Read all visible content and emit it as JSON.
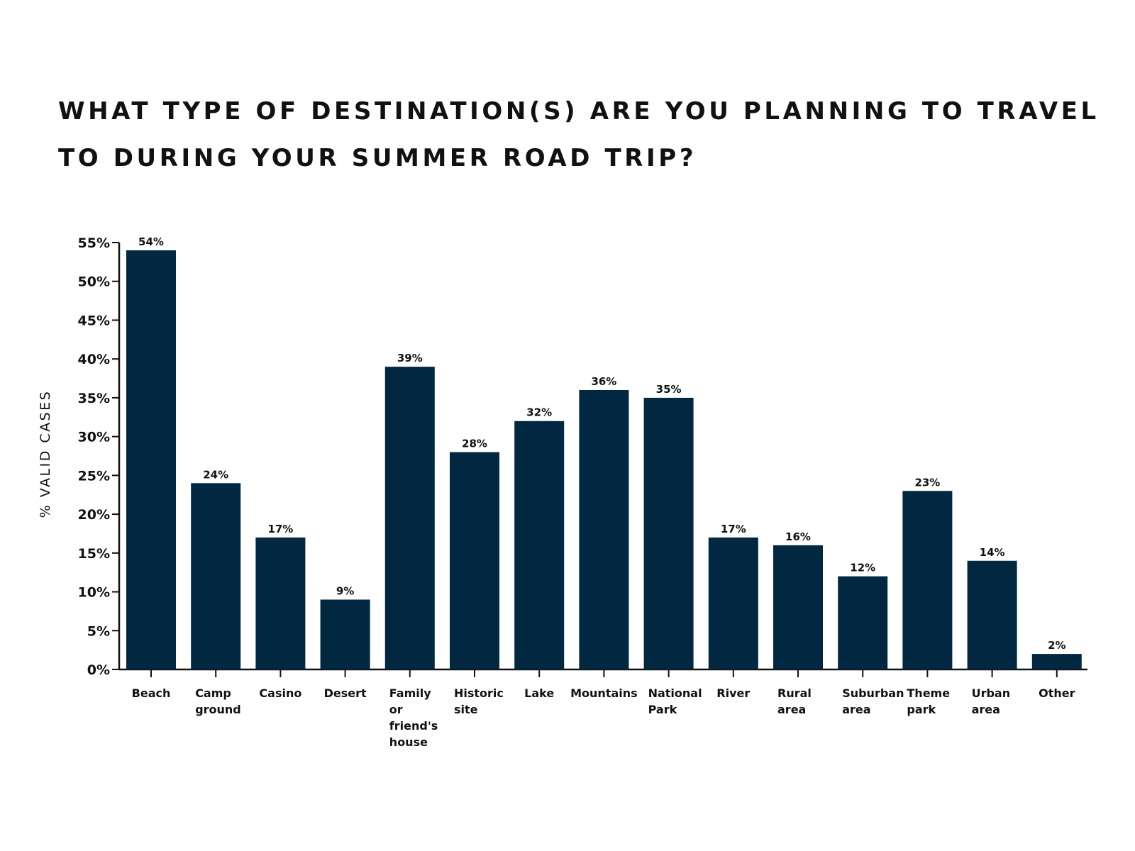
{
  "chart_data": {
    "type": "bar",
    "title": "WHAT TYPE OF DESTINATION(S) ARE YOU PLANNING TO TRAVEL TO DURING YOUR SUMMER ROAD TRIP?",
    "xlabel": "",
    "ylabel": "% VALID CASES",
    "ylim": [
      0,
      55
    ],
    "yticks": [
      "0%",
      "5%",
      "10%",
      "15%",
      "20%",
      "25%",
      "30%",
      "35%",
      "40%",
      "45%",
      "50%",
      "55%"
    ],
    "categories": [
      [
        "Beach"
      ],
      [
        "Camp",
        "ground"
      ],
      [
        "Casino"
      ],
      [
        "Desert"
      ],
      [
        "Family",
        "or",
        "friend's",
        "house"
      ],
      [
        "Historic",
        "site"
      ],
      [
        "Lake"
      ],
      [
        "Mountains"
      ],
      [
        "National",
        "Park"
      ],
      [
        "River"
      ],
      [
        "Rural",
        "area"
      ],
      [
        "Suburban",
        "area"
      ],
      [
        "Theme",
        "park"
      ],
      [
        "Urban",
        "area"
      ],
      [
        "Other"
      ]
    ],
    "values": [
      54,
      24,
      17,
      9,
      39,
      28,
      32,
      36,
      35,
      17,
      16,
      12,
      23,
      14,
      2
    ],
    "value_labels": [
      "54%",
      "24%",
      "17%",
      "9%",
      "39%",
      "28%",
      "32%",
      "36%",
      "35%",
      "17%",
      "16%",
      "12%",
      "23%",
      "14%",
      "2%"
    ],
    "bar_color": "#022740",
    "grid": false,
    "legend": "none"
  }
}
